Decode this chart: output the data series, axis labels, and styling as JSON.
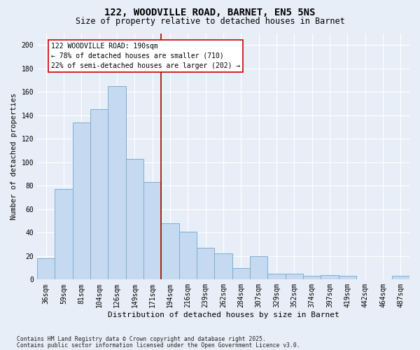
{
  "title1": "122, WOODVILLE ROAD, BARNET, EN5 5NS",
  "title2": "Size of property relative to detached houses in Barnet",
  "xlabel": "Distribution of detached houses by size in Barnet",
  "ylabel": "Number of detached properties",
  "categories": [
    "36sqm",
    "59sqm",
    "81sqm",
    "104sqm",
    "126sqm",
    "149sqm",
    "171sqm",
    "194sqm",
    "216sqm",
    "239sqm",
    "262sqm",
    "284sqm",
    "307sqm",
    "329sqm",
    "352sqm",
    "374sqm",
    "397sqm",
    "419sqm",
    "442sqm",
    "464sqm",
    "487sqm"
  ],
  "bar_values": [
    18,
    77,
    134,
    145,
    165,
    103,
    83,
    48,
    41,
    27,
    22,
    10,
    20,
    5,
    5,
    3,
    4,
    3,
    0,
    0,
    3
  ],
  "bar_color": "#c5d9f1",
  "bar_edge_color": "#7bafd4",
  "vline_idx": 7.0,
  "vline_color": "#aa0000",
  "annotation_line1": "122 WOODVILLE ROAD: 190sqm",
  "annotation_line2": "← 78% of detached houses are smaller (710)",
  "annotation_line3": "22% of semi-detached houses are larger (202) →",
  "annotation_box_color": "#ffffff",
  "annotation_box_edge": "#cc0000",
  "ylim": [
    0,
    210
  ],
  "yticks": [
    0,
    20,
    40,
    60,
    80,
    100,
    120,
    140,
    160,
    180,
    200
  ],
  "footer1": "Contains HM Land Registry data © Crown copyright and database right 2025.",
  "footer2": "Contains public sector information licensed under the Open Government Licence v3.0.",
  "bg_color": "#e8eef8",
  "plot_bg_color": "#e8eef8",
  "title1_fontsize": 10,
  "title2_fontsize": 8.5,
  "ylabel_fontsize": 7.5,
  "xlabel_fontsize": 8,
  "tick_fontsize": 7,
  "annot_fontsize": 7,
  "footer_fontsize": 5.8
}
